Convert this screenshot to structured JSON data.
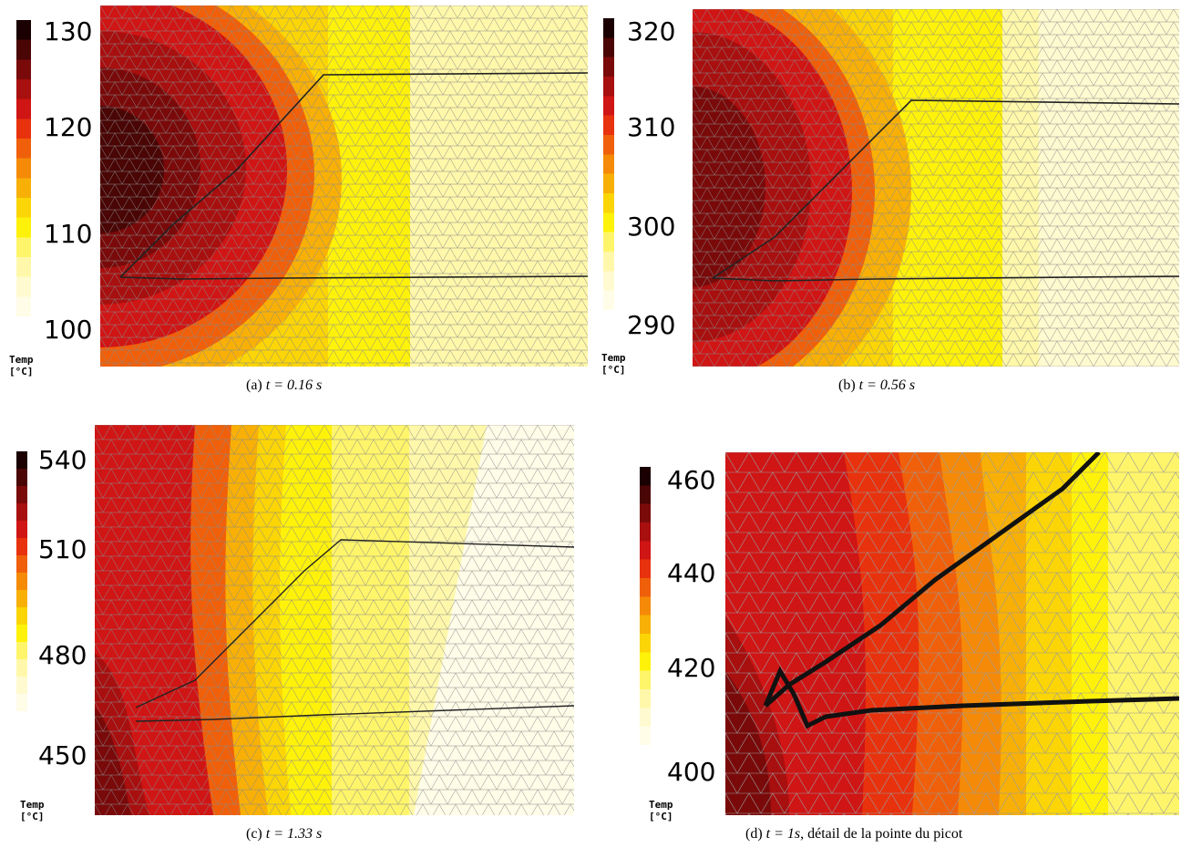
{
  "panels": [
    {
      "id": "a",
      "caption_label": "(a)",
      "caption_math": "t = 0.16 s",
      "caption_extra": "",
      "unit_label": "Temp [°C]",
      "ticks": [
        "130",
        "120",
        "110",
        "100"
      ]
    },
    {
      "id": "b",
      "caption_label": "(b)",
      "caption_math": "t = 0.56 s",
      "caption_extra": "",
      "unit_label": "Temp [°C]",
      "ticks": [
        "320",
        "310",
        "300",
        "290"
      ]
    },
    {
      "id": "c",
      "caption_label": "(c)",
      "caption_math": "t = 1.33 s",
      "caption_extra": "",
      "unit_label": "Temp [°C]",
      "ticks": [
        "540",
        "510",
        "480",
        "450"
      ]
    },
    {
      "id": "d",
      "caption_label": "(d)",
      "caption_math": "t = 1s",
      "caption_extra": ", détail de la pointe du picot",
      "unit_label": "Temp [°C]",
      "ticks": [
        "460",
        "440",
        "420",
        "400"
      ]
    }
  ],
  "colorscale": [
    "#1a0000",
    "#4a0505",
    "#7a0a0a",
    "#a80f0f",
    "#d01515",
    "#e8320d",
    "#f0600a",
    "#f58a08",
    "#f8b006",
    "#fbd505",
    "#fff20a",
    "#fff56a",
    "#fff8aa",
    "#fffad0",
    "#fffce8"
  ]
}
